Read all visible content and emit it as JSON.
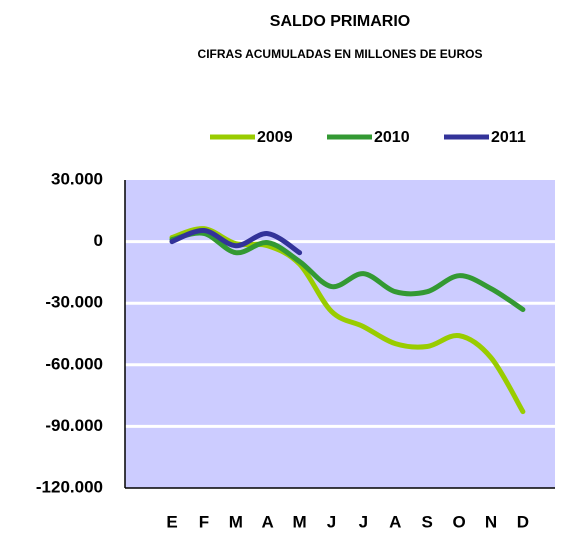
{
  "chart_data": {
    "type": "line",
    "title": "SALDO PRIMARIO",
    "subtitle": "CIFRAS ACUMULADAS EN MILLONES DE EUROS",
    "categories": [
      "E",
      "F",
      "M",
      "A",
      "M",
      "J",
      "J",
      "A",
      "S",
      "O",
      "N",
      "D"
    ],
    "series": [
      {
        "name": "2009",
        "color": "#99cc00",
        "values": [
          2000,
          6300,
          -1000,
          -2000,
          -11000,
          -34000,
          -41400,
          -49700,
          -51100,
          -45800,
          -56500,
          -82800
        ]
      },
      {
        "name": "2010",
        "color": "#339933",
        "values": [
          1000,
          4000,
          -5400,
          -500,
          -9700,
          -21900,
          -15600,
          -24400,
          -24400,
          -16600,
          -22900,
          -33100
        ]
      },
      {
        "name": "2011",
        "color": "#333399",
        "values": [
          0,
          5400,
          -2000,
          3900,
          -5400,
          null,
          null,
          null,
          null,
          null,
          null,
          null
        ]
      }
    ],
    "ylim": [
      -120000,
      30000
    ],
    "yticks": [
      {
        "value": 30000,
        "label": "30.000"
      },
      0,
      {
        "value": -30000,
        "label": "-30.000"
      },
      {
        "value": -60000,
        "label": "-60.000"
      },
      {
        "value": -90000,
        "label": "-90.000"
      },
      {
        "value": -120000,
        "label": "-120.000"
      }
    ],
    "grid": true,
    "legend": "top"
  }
}
